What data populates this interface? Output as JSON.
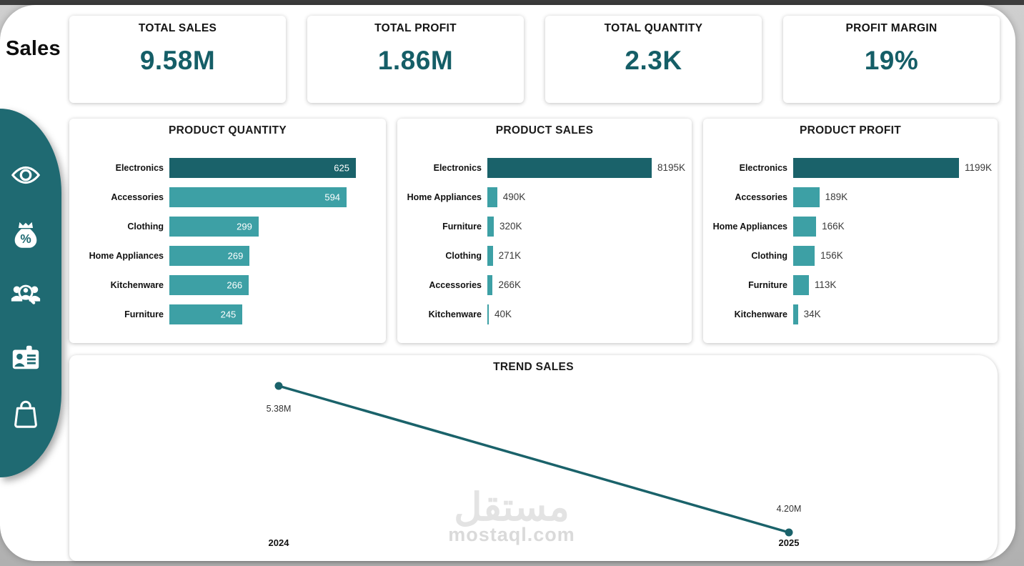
{
  "sidebar": {
    "title": "Sales",
    "icons": [
      {
        "name": "eye-icon"
      },
      {
        "name": "money-bag-percent-icon"
      },
      {
        "name": "customer-search-icon"
      },
      {
        "name": "id-card-icon"
      },
      {
        "name": "shopping-bag-icon"
      }
    ]
  },
  "kpis": [
    {
      "label": "TOTAL SALES",
      "value": "9.58M"
    },
    {
      "label": "TOTAL PROFIT",
      "value": "1.86M"
    },
    {
      "label": "TOTAL QUANTITY",
      "value": "2.3K"
    },
    {
      "label": "PROFIT MARGIN",
      "value": "19%"
    }
  ],
  "colors": {
    "teal_dark": "#1a626a",
    "teal_light": "#3da0a5",
    "sidebar_teal": "#1f6a72",
    "kpi_value_text": "#155e67",
    "bar_value_outside_text": "#3a3a3a",
    "title_text": "#1b1b1b",
    "watermark_gray": "#e3e3e3"
  },
  "chart_data": [
    {
      "type": "bar",
      "orientation": "horizontal",
      "title": "PRODUCT QUANTITY",
      "categories": [
        "Electronics",
        "Accessories",
        "Clothing",
        "Home Appliances",
        "Kitchenware",
        "Furniture"
      ],
      "values": [
        625,
        594,
        299,
        269,
        266,
        245
      ],
      "values_display": [
        "625",
        "594",
        "299",
        "269",
        "266",
        "245"
      ],
      "value_labels": "inside",
      "highlight_category": "Electronics",
      "xlim": [
        0,
        625
      ],
      "grid": false,
      "legend": false
    },
    {
      "type": "bar",
      "orientation": "horizontal",
      "title": "PRODUCT SALES",
      "categories": [
        "Electronics",
        "Home Appliances",
        "Furniture",
        "Clothing",
        "Accessories",
        "Kitchenware"
      ],
      "values": [
        8195,
        490,
        320,
        271,
        266,
        40
      ],
      "values_display": [
        "8195K",
        "490K",
        "320K",
        "271K",
        "266K",
        "40K"
      ],
      "unit": "K",
      "value_labels": "outside",
      "highlight_category": "Electronics",
      "xlim": [
        0,
        8195
      ],
      "grid": false,
      "legend": false
    },
    {
      "type": "bar",
      "orientation": "horizontal",
      "title": "PRODUCT PROFIT",
      "categories": [
        "Electronics",
        "Accessories",
        "Home Appliances",
        "Clothing",
        "Furniture",
        "Kitchenware"
      ],
      "values": [
        1199,
        189,
        166,
        156,
        113,
        34
      ],
      "values_display": [
        "1199K",
        "189K",
        "166K",
        "156K",
        "113K",
        "34K"
      ],
      "unit": "K",
      "value_labels": "outside",
      "highlight_category": "Electronics",
      "xlim": [
        0,
        1199
      ],
      "grid": false,
      "legend": false
    },
    {
      "type": "line",
      "title": "TREND SALES",
      "x": [
        "2024",
        "2025"
      ],
      "values": [
        5380000,
        4200000
      ],
      "values_display": [
        "5.38M",
        "4.20M"
      ],
      "grid": false,
      "legend": false
    }
  ],
  "watermark": {
    "arabic": "مستقل",
    "latin": "mostaql.com"
  }
}
